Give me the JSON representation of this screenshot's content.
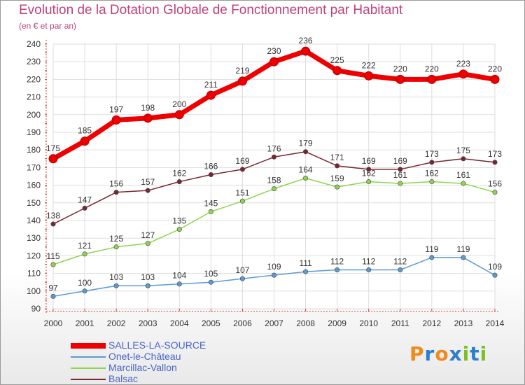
{
  "title": "Evolution de la Dotation Globale de Fonctionnement par Habitant",
  "subtitle": "(en € et par an)",
  "logo": {
    "letters": [
      "P",
      "r",
      "o",
      "x",
      "i",
      "t",
      "i"
    ],
    "colors": [
      "#f08a1c",
      "#2a7fd0",
      "#f08a1c",
      "#2a7fd0",
      "#7bbf2a",
      "#2a7fd0",
      "#7bbf2a"
    ]
  },
  "chart_data": {
    "type": "line",
    "x": [
      "2000",
      "2001",
      "2002",
      "2003",
      "2004",
      "2005",
      "2006",
      "2007",
      "2008",
      "2009",
      "2010",
      "2011",
      "2012",
      "2013",
      "2014"
    ],
    "ylim": [
      90,
      240
    ],
    "yticks": [
      90,
      100,
      110,
      120,
      130,
      140,
      150,
      160,
      170,
      180,
      190,
      200,
      210,
      220,
      230,
      240
    ],
    "grid": true,
    "legend_position": "bottom-left",
    "series": [
      {
        "name": "SALLES-LA-SOURCE",
        "color": "#ee0000",
        "values": [
          175,
          185,
          197,
          198,
          200,
          211,
          219,
          230,
          236,
          225,
          222,
          220,
          220,
          223,
          220
        ]
      },
      {
        "name": "Onet-le-Château",
        "color": "#5b9bd5",
        "values": [
          97,
          100,
          103,
          103,
          104,
          105,
          107,
          109,
          111,
          112,
          112,
          112,
          119,
          119,
          109
        ]
      },
      {
        "name": "Marcillac-Vallon",
        "color": "#8ed44e",
        "values": [
          115,
          121,
          125,
          127,
          135,
          145,
          151,
          158,
          164,
          159,
          162,
          161,
          162,
          161,
          156
        ]
      },
      {
        "name": "Balsac",
        "color": "#7a2630",
        "values": [
          138,
          147,
          156,
          157,
          162,
          166,
          169,
          176,
          179,
          171,
          169,
          169,
          173,
          175,
          173
        ]
      }
    ]
  }
}
